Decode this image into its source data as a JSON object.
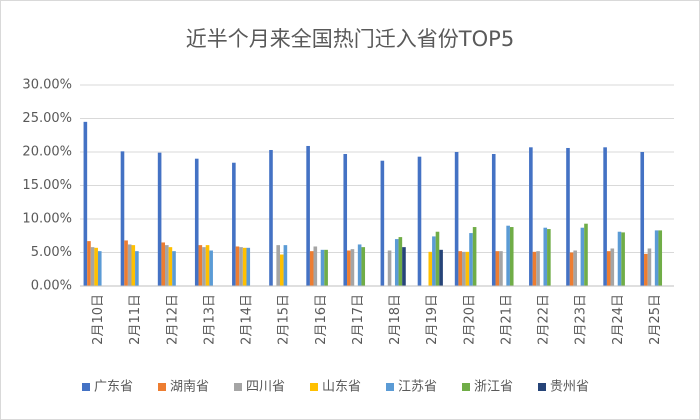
{
  "chart_data": {
    "type": "bar",
    "title": "近半个月来全国热门迁入省份TOP5",
    "categories": [
      "2月10日",
      "2月11日",
      "2月12日",
      "2月13日",
      "2月14日",
      "2月15日",
      "2月16日",
      "2月17日",
      "2月18日",
      "2月19日",
      "2月20日",
      "2月21日",
      "2月22日",
      "2月23日",
      "2月24日",
      "2月25日"
    ],
    "series": [
      {
        "name": "广东省",
        "color": "#4472c4",
        "values": [
          24.5,
          20.1,
          19.9,
          19.0,
          18.4,
          20.3,
          20.9,
          19.7,
          18.7,
          19.3,
          20.0,
          19.7,
          20.7,
          20.6,
          20.7,
          20.0
        ]
      },
      {
        "name": "湖南省",
        "color": "#ed7d31",
        "values": [
          6.7,
          6.8,
          6.5,
          6.1,
          5.9,
          null,
          5.2,
          5.3,
          null,
          null,
          5.2,
          5.2,
          5.1,
          5.0,
          5.2,
          4.8
        ]
      },
      {
        "name": "四川省",
        "color": "#a5a5a5",
        "values": [
          5.8,
          6.2,
          6.1,
          5.8,
          5.8,
          6.1,
          5.9,
          5.5,
          5.3,
          null,
          5.1,
          5.2,
          5.2,
          5.3,
          5.6,
          5.6
        ]
      },
      {
        "name": "山东省",
        "color": "#ffc000",
        "values": [
          5.7,
          6.1,
          5.8,
          6.1,
          5.7,
          4.7,
          null,
          null,
          null,
          5.1,
          5.1,
          null,
          null,
          null,
          null,
          null
        ]
      },
      {
        "name": "江苏省",
        "color": "#5b9bd5",
        "values": [
          5.2,
          5.2,
          5.2,
          5.3,
          5.7,
          6.1,
          5.4,
          6.2,
          7.0,
          7.4,
          7.9,
          9.0,
          8.7,
          8.7,
          8.1,
          8.3
        ]
      },
      {
        "name": "浙江省",
        "color": "#70ad47",
        "values": [
          null,
          null,
          null,
          null,
          null,
          null,
          5.4,
          5.8,
          7.3,
          8.1,
          8.8,
          8.8,
          8.5,
          9.3,
          8.0,
          8.3
        ]
      },
      {
        "name": "贵州省",
        "color": "#264478",
        "values": [
          null,
          null,
          null,
          null,
          null,
          null,
          null,
          null,
          5.8,
          5.4,
          null,
          null,
          null,
          null,
          null,
          null
        ]
      }
    ],
    "ylim": [
      0,
      30
    ],
    "yticks": [
      {
        "value": 0,
        "label": "0.00%"
      },
      {
        "value": 5,
        "label": "5.00%"
      },
      {
        "value": 10,
        "label": "10.00%"
      },
      {
        "value": 15,
        "label": "15.00%"
      },
      {
        "value": 20,
        "label": "20.00%"
      },
      {
        "value": 25,
        "label": "25.00%"
      },
      {
        "value": 30,
        "label": "30.00%"
      }
    ],
    "grid": true,
    "legend": "bottom"
  }
}
